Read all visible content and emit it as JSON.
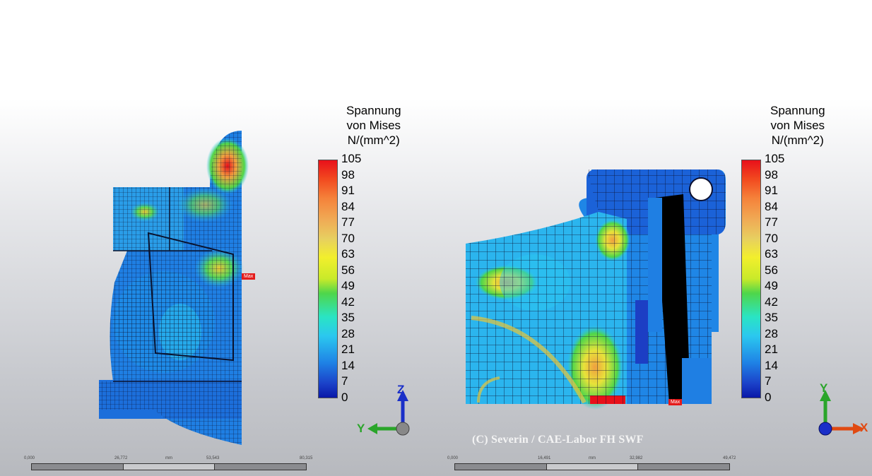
{
  "colors": {
    "high": "#e8101a",
    "mid": "#f2ef2c",
    "low": "#0a18a8",
    "axis_y": "#2aa52a",
    "axis_z": "#1a2fc8",
    "axis_x": "#e04a12"
  },
  "legend_left": {
    "title_lines": [
      "Spannung",
      "von Mises",
      "N/(mm^2)"
    ],
    "ticks": [
      "105",
      "98",
      "91",
      "84",
      "77",
      "70",
      "63",
      "56",
      "49",
      "42",
      "35",
      "28",
      "21",
      "14",
      "7",
      "0"
    ]
  },
  "legend_right": {
    "title_lines": [
      "Spannung",
      "von Mises",
      "N/(mm^2)"
    ],
    "ticks": [
      "105",
      "98",
      "91",
      "84",
      "77",
      "70",
      "63",
      "56",
      "49",
      "42",
      "35",
      "28",
      "21",
      "14",
      "7",
      "0"
    ]
  },
  "left_view": {
    "max_label": "Max",
    "triad": {
      "vertical": "Z",
      "horizontal": "Y"
    },
    "ruler": {
      "values": [
        "0,000",
        "26,772",
        "mm",
        "53,543",
        "80,315"
      ]
    }
  },
  "right_view": {
    "max_label": "Max",
    "triad": {
      "vertical": "Y",
      "horizontal": "X"
    },
    "ruler": {
      "values": [
        "0,000",
        "16,491",
        "mm",
        "32,982",
        "49,472"
      ]
    }
  },
  "watermark": "(C) Severin / CAE-Labor FH SWF"
}
